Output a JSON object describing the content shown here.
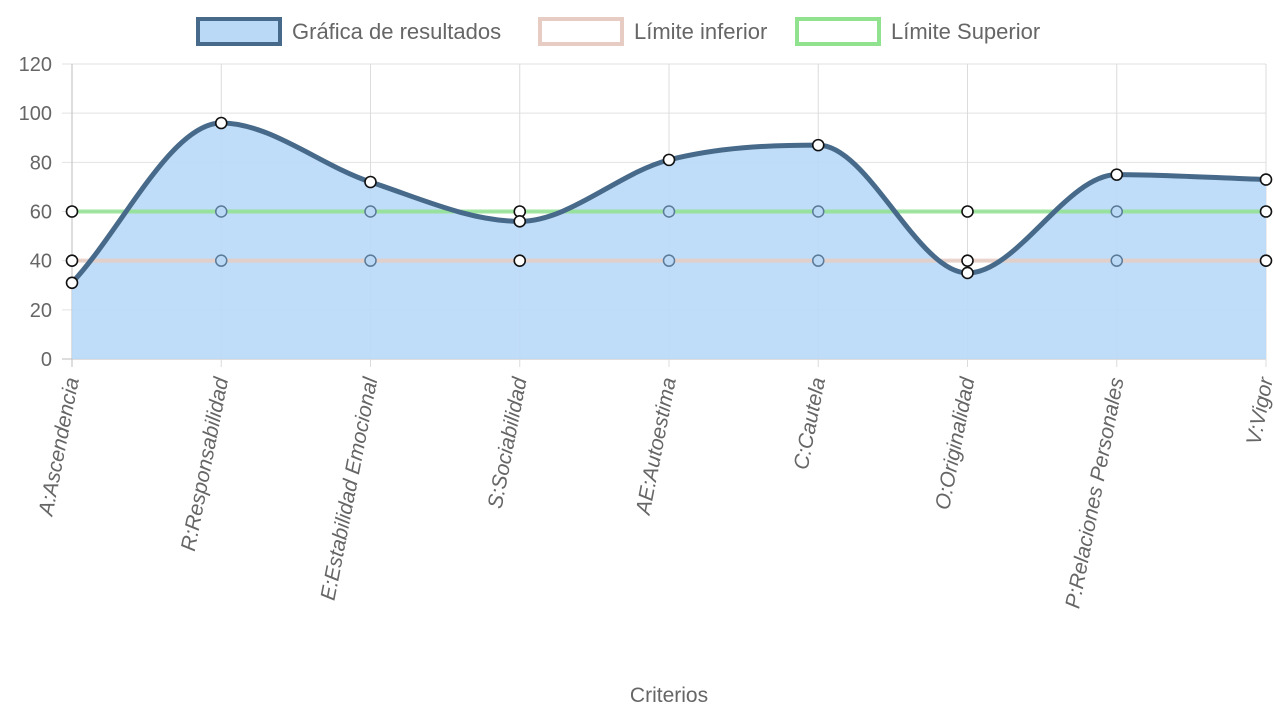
{
  "chart_data": {
    "type": "line",
    "title": "",
    "xlabel": "Criterios",
    "ylabel": "",
    "ylim": [
      0,
      120
    ],
    "y_ticks": [
      0,
      20,
      40,
      60,
      80,
      100,
      120
    ],
    "grid": true,
    "legend_position": "top",
    "categories": [
      "A:Ascendencia",
      "R:Responsabilidad",
      "E:Estabilidad Emocional",
      "S:Sociabilidad",
      "AE:Autoestima",
      "C:Cautela",
      "O:Originalidad",
      "P:Relaciones Personales",
      "V:Vigor"
    ],
    "series": [
      {
        "name": "Gráfica de resultados",
        "values": [
          31,
          96,
          72,
          56,
          81,
          87,
          35,
          75,
          73
        ],
        "line_color": "#476A8A",
        "fill_color": "#BAD9F7",
        "filled": true,
        "smooth": true
      },
      {
        "name": "Límite inferior",
        "values": [
          40,
          40,
          40,
          40,
          40,
          40,
          40,
          40,
          40
        ],
        "line_color": "#E6CCC2",
        "filled": false,
        "smooth": false
      },
      {
        "name": "Límite Superior",
        "values": [
          60,
          60,
          60,
          60,
          60,
          60,
          60,
          60,
          60
        ],
        "line_color": "#90E28F",
        "filled": false,
        "smooth": false
      }
    ]
  }
}
